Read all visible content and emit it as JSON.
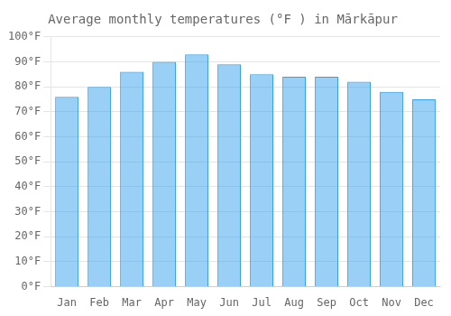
{
  "chart_data": {
    "type": "bar",
    "title": "Average monthly temperatures (°F ) in Mārkāpur",
    "categories": [
      "Jan",
      "Feb",
      "Mar",
      "Apr",
      "May",
      "Jun",
      "Jul",
      "Aug",
      "Sep",
      "Oct",
      "Nov",
      "Dec"
    ],
    "values": [
      76,
      80,
      86,
      90,
      93,
      89,
      85,
      84,
      84,
      82,
      78,
      75
    ],
    "ylim": [
      0,
      100
    ],
    "yticks": [
      {
        "value": 0,
        "label": "0°F"
      },
      {
        "value": 10,
        "label": "10°F"
      },
      {
        "value": 20,
        "label": "20°F"
      },
      {
        "value": 30,
        "label": "30°F"
      },
      {
        "value": 40,
        "label": "40°F"
      },
      {
        "value": 50,
        "label": "50°F"
      },
      {
        "value": 60,
        "label": "60°F"
      },
      {
        "value": 70,
        "label": "70°F"
      },
      {
        "value": 80,
        "label": "80°F"
      },
      {
        "value": 90,
        "label": "90°F"
      },
      {
        "value": 100,
        "label": "100°F"
      }
    ],
    "grid": true
  }
}
